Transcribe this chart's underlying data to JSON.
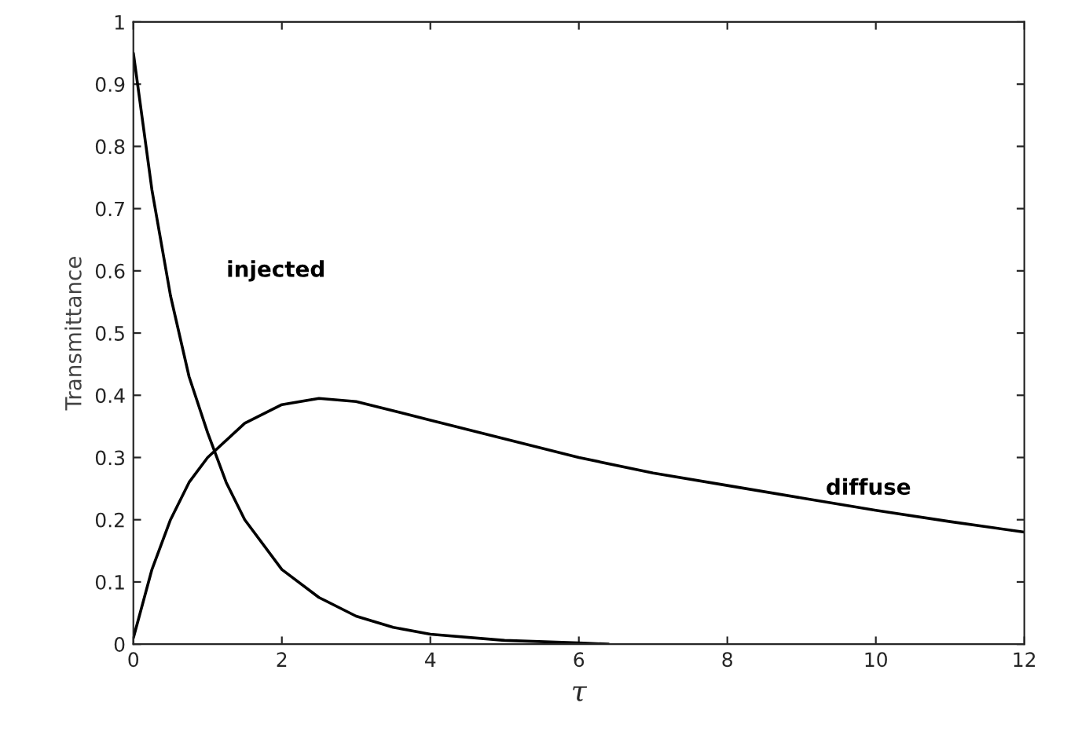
{
  "chart_data": {
    "type": "line",
    "xlabel": "τ",
    "ylabel": "Transmittance",
    "xlim": [
      0,
      12
    ],
    "xticks": [
      0,
      2,
      4,
      6,
      8,
      10,
      12
    ],
    "ylim": [
      0,
      1
    ],
    "yticks": [
      0,
      0.1,
      0.2,
      0.3,
      0.4,
      0.5,
      0.6,
      0.7,
      0.8,
      0.9,
      1
    ],
    "grid": false,
    "legend": false,
    "marker": "none",
    "line_style": "solid",
    "series": [
      {
        "name": "injected",
        "color": "#000000",
        "x": [
          0,
          0.25,
          0.5,
          0.75,
          1,
          1.25,
          1.5,
          2,
          2.5,
          3,
          3.5,
          4,
          5,
          6,
          6.4
        ],
        "values": [
          0.95,
          0.73,
          0.56,
          0.43,
          0.34,
          0.26,
          0.2,
          0.12,
          0.075,
          0.045,
          0.027,
          0.016,
          0.006,
          0.002,
          0
        ]
      },
      {
        "name": "diffuse",
        "color": "#000000",
        "x": [
          0,
          0.25,
          0.5,
          0.75,
          1,
          1.5,
          2,
          2.5,
          3,
          4,
          5,
          6,
          7,
          8,
          9,
          10,
          11,
          12
        ],
        "values": [
          0.01,
          0.12,
          0.2,
          0.26,
          0.3,
          0.355,
          0.385,
          0.395,
          0.39,
          0.36,
          0.33,
          0.3,
          0.275,
          0.255,
          0.235,
          0.215,
          0.197,
          0.18
        ]
      }
    ]
  }
}
